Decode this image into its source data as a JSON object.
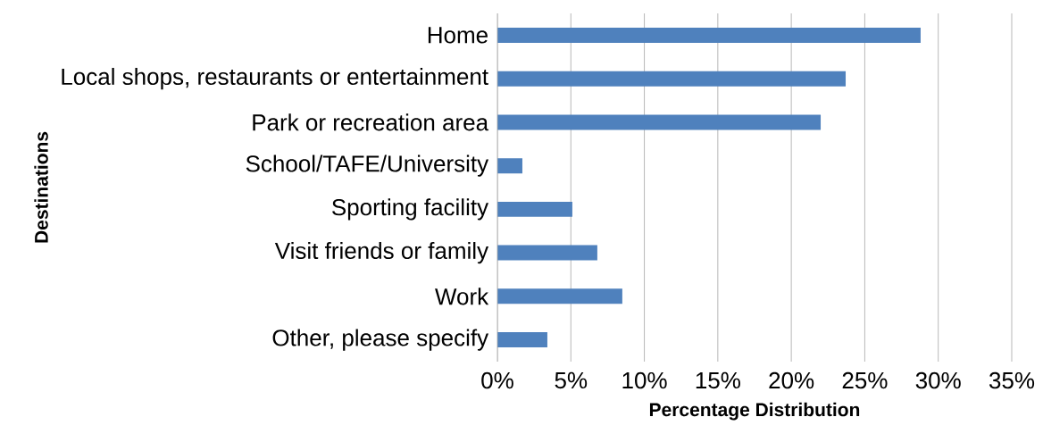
{
  "chart_data": {
    "type": "bar",
    "orientation": "horizontal",
    "xlabel": "Percentage Distribution",
    "ylabel": "Destinations",
    "categories": [
      "Home",
      "Local shops, restaurants or entertainment",
      "Park or recreation area",
      "School/TAFE/University",
      "Sporting facility",
      "Visit friends or family",
      "Work",
      "Other, please specify"
    ],
    "values": [
      28.8,
      23.7,
      22.0,
      1.7,
      5.1,
      6.8,
      8.5,
      3.4
    ],
    "color": "#4f81bd",
    "xlim": [
      0,
      35
    ],
    "xticks": [
      {
        "value": 0,
        "label": "0%"
      },
      {
        "value": 5,
        "label": "5%"
      },
      {
        "value": 10,
        "label": "10%"
      },
      {
        "value": 15,
        "label": "15%"
      },
      {
        "value": 20,
        "label": "20%"
      },
      {
        "value": 25,
        "label": "25%"
      },
      {
        "value": 30,
        "label": "30%"
      },
      {
        "value": 35,
        "label": "35%"
      }
    ],
    "grid": "x"
  }
}
